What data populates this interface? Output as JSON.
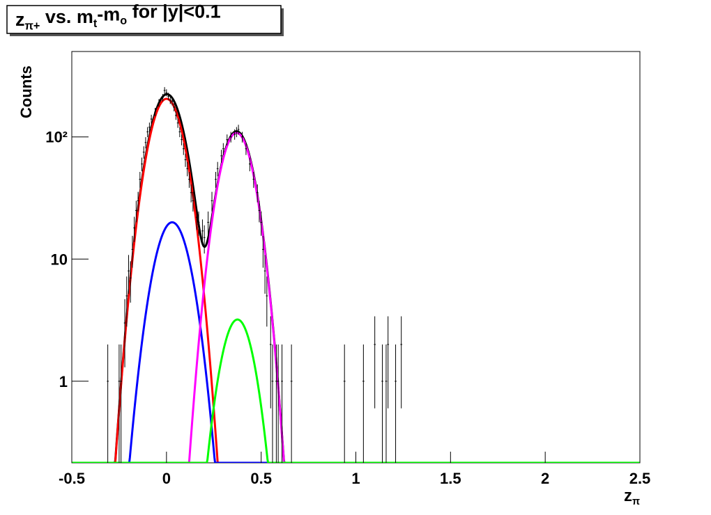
{
  "chart_data": {
    "type": "histogram-fit",
    "title": [
      {
        "text": "z"
      },
      {
        "text": "π+",
        "sub": true
      },
      {
        "text": " vs. m"
      },
      {
        "text": "t",
        "sub": true
      },
      {
        "text": "-m"
      },
      {
        "text": "o",
        "sub": true
      },
      {
        "text": " for |y|<0.1"
      }
    ],
    "xlabel": [
      {
        "text": "z"
      },
      {
        "text": "π",
        "sub": true
      }
    ],
    "ylabel": "Counts",
    "log_y": true,
    "xlim": [
      -0.5,
      2.5
    ],
    "ylim": [
      0.215,
      500
    ],
    "xticks": [
      -0.5,
      0,
      0.5,
      1,
      1.5,
      2,
      2.5
    ],
    "yticks": [
      1,
      10,
      {
        "value": 100,
        "label": "10²"
      }
    ],
    "bin_width": 0.01,
    "series": [
      {
        "color": "#000000",
        "x": [
          -0.31,
          -0.25,
          -0.24,
          -0.22,
          -0.21,
          -0.2,
          -0.19,
          -0.18,
          -0.17,
          -0.16,
          -0.15,
          -0.14,
          -0.13,
          -0.12,
          -0.11,
          -0.1,
          -0.09,
          -0.08,
          -0.06,
          -0.04,
          -0.02,
          -0.01,
          0,
          0.01,
          0.02,
          0.03,
          0.04,
          0.05,
          0.06,
          0.07,
          0.08,
          0.09,
          0.1,
          0.11,
          0.12,
          0.13,
          0.14,
          0.16,
          0.17,
          0.19,
          0.2,
          0.22,
          0.24,
          0.26,
          0.27,
          0.29,
          0.3,
          0.32,
          0.34,
          0.36,
          0.37,
          0.38,
          0.4,
          0.42,
          0.44,
          0.46,
          0.48,
          0.49,
          0.5,
          0.51,
          0.52,
          0.53,
          0.55,
          0.56,
          0.58,
          0.59,
          0.61,
          0.66,
          0.94,
          1.04,
          1.1,
          1.14,
          1.16,
          1.17,
          1.21,
          1.24
        ],
        "values": [
          1,
          1,
          1,
          3,
          5,
          8,
          7,
          12,
          18,
          25,
          30,
          45,
          60,
          75,
          90,
          110,
          120,
          140,
          160,
          190,
          210,
          240,
          230,
          215,
          200,
          195,
          175,
          150,
          130,
          110,
          95,
          80,
          65,
          55,
          45,
          35,
          30,
          22,
          20,
          17,
          15,
          20,
          30,
          45,
          55,
          70,
          80,
          95,
          100,
          105,
          110,
          115,
          100,
          80,
          60,
          45,
          35,
          25,
          20,
          12,
          8,
          5,
          2,
          1,
          1,
          1,
          1,
          1,
          1,
          1,
          2,
          1,
          1,
          2,
          1,
          2
        ],
        "errors": [
          1,
          1,
          1,
          1.7,
          2.2,
          2.8,
          2.6,
          3.5,
          4.2,
          5,
          5.5,
          6.7,
          7.7,
          8.7,
          9.5,
          10.5,
          11,
          11.8,
          12.6,
          13.8,
          14.5,
          15.5,
          15.2,
          14.7,
          14.1,
          14,
          13.2,
          12.2,
          11.4,
          10.5,
          9.7,
          8.9,
          8.1,
          7.4,
          6.7,
          5.9,
          5.5,
          4.7,
          4.5,
          4.1,
          3.9,
          4.5,
          5.5,
          6.7,
          7.4,
          8.4,
          8.9,
          9.7,
          10,
          10.2,
          10.5,
          10.7,
          10,
          8.9,
          7.7,
          6.7,
          5.9,
          5,
          4.5,
          3.5,
          2.8,
          2.2,
          1.4,
          1,
          1,
          1,
          1,
          1,
          1,
          1,
          1.4,
          1,
          1,
          1.4,
          1,
          1.4
        ]
      }
    ],
    "fits": [
      {
        "color": "#ff0000",
        "amplitude": 205,
        "mean": 0,
        "sigma": 0.073
      },
      {
        "color": "#0000ff",
        "amplitude": 20,
        "mean": 0.03,
        "sigma": 0.075
      },
      {
        "color": "#ff00ff",
        "amplitude": 108,
        "mean": 0.37,
        "sigma": 0.071
      },
      {
        "color": "#00ff00",
        "amplitude": 3.2,
        "mean": 0.375,
        "sigma": 0.069
      }
    ],
    "total_fit_color": "#000000"
  }
}
